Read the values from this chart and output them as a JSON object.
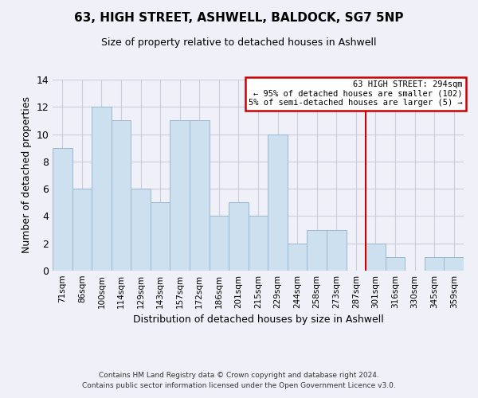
{
  "title": "63, HIGH STREET, ASHWELL, BALDOCK, SG7 5NP",
  "subtitle": "Size of property relative to detached houses in Ashwell",
  "xlabel": "Distribution of detached houses by size in Ashwell",
  "ylabel": "Number of detached properties",
  "bar_labels": [
    "71sqm",
    "86sqm",
    "100sqm",
    "114sqm",
    "129sqm",
    "143sqm",
    "157sqm",
    "172sqm",
    "186sqm",
    "201sqm",
    "215sqm",
    "229sqm",
    "244sqm",
    "258sqm",
    "273sqm",
    "287sqm",
    "301sqm",
    "316sqm",
    "330sqm",
    "345sqm",
    "359sqm"
  ],
  "bar_values": [
    9,
    6,
    12,
    11,
    6,
    5,
    11,
    11,
    4,
    5,
    4,
    10,
    2,
    3,
    3,
    0,
    2,
    1,
    0,
    1,
    1
  ],
  "bar_color": "#cce0f0",
  "bar_edge_color": "#9ab8d0",
  "grid_color": "#ccccdd",
  "vline_x": 15.5,
  "vline_color": "#cc0000",
  "box_text_line1": "63 HIGH STREET: 294sqm",
  "box_text_line2": "← 95% of detached houses are smaller (102)",
  "box_text_line3": "5% of semi-detached houses are larger (5) →",
  "box_edge_color": "#cc0000",
  "box_face_color": "#ffffff",
  "ylim": [
    0,
    14
  ],
  "yticks": [
    0,
    2,
    4,
    6,
    8,
    10,
    12,
    14
  ],
  "footer_line1": "Contains HM Land Registry data © Crown copyright and database right 2024.",
  "footer_line2": "Contains public sector information licensed under the Open Government Licence v3.0.",
  "bg_color": "#f0f0f8"
}
